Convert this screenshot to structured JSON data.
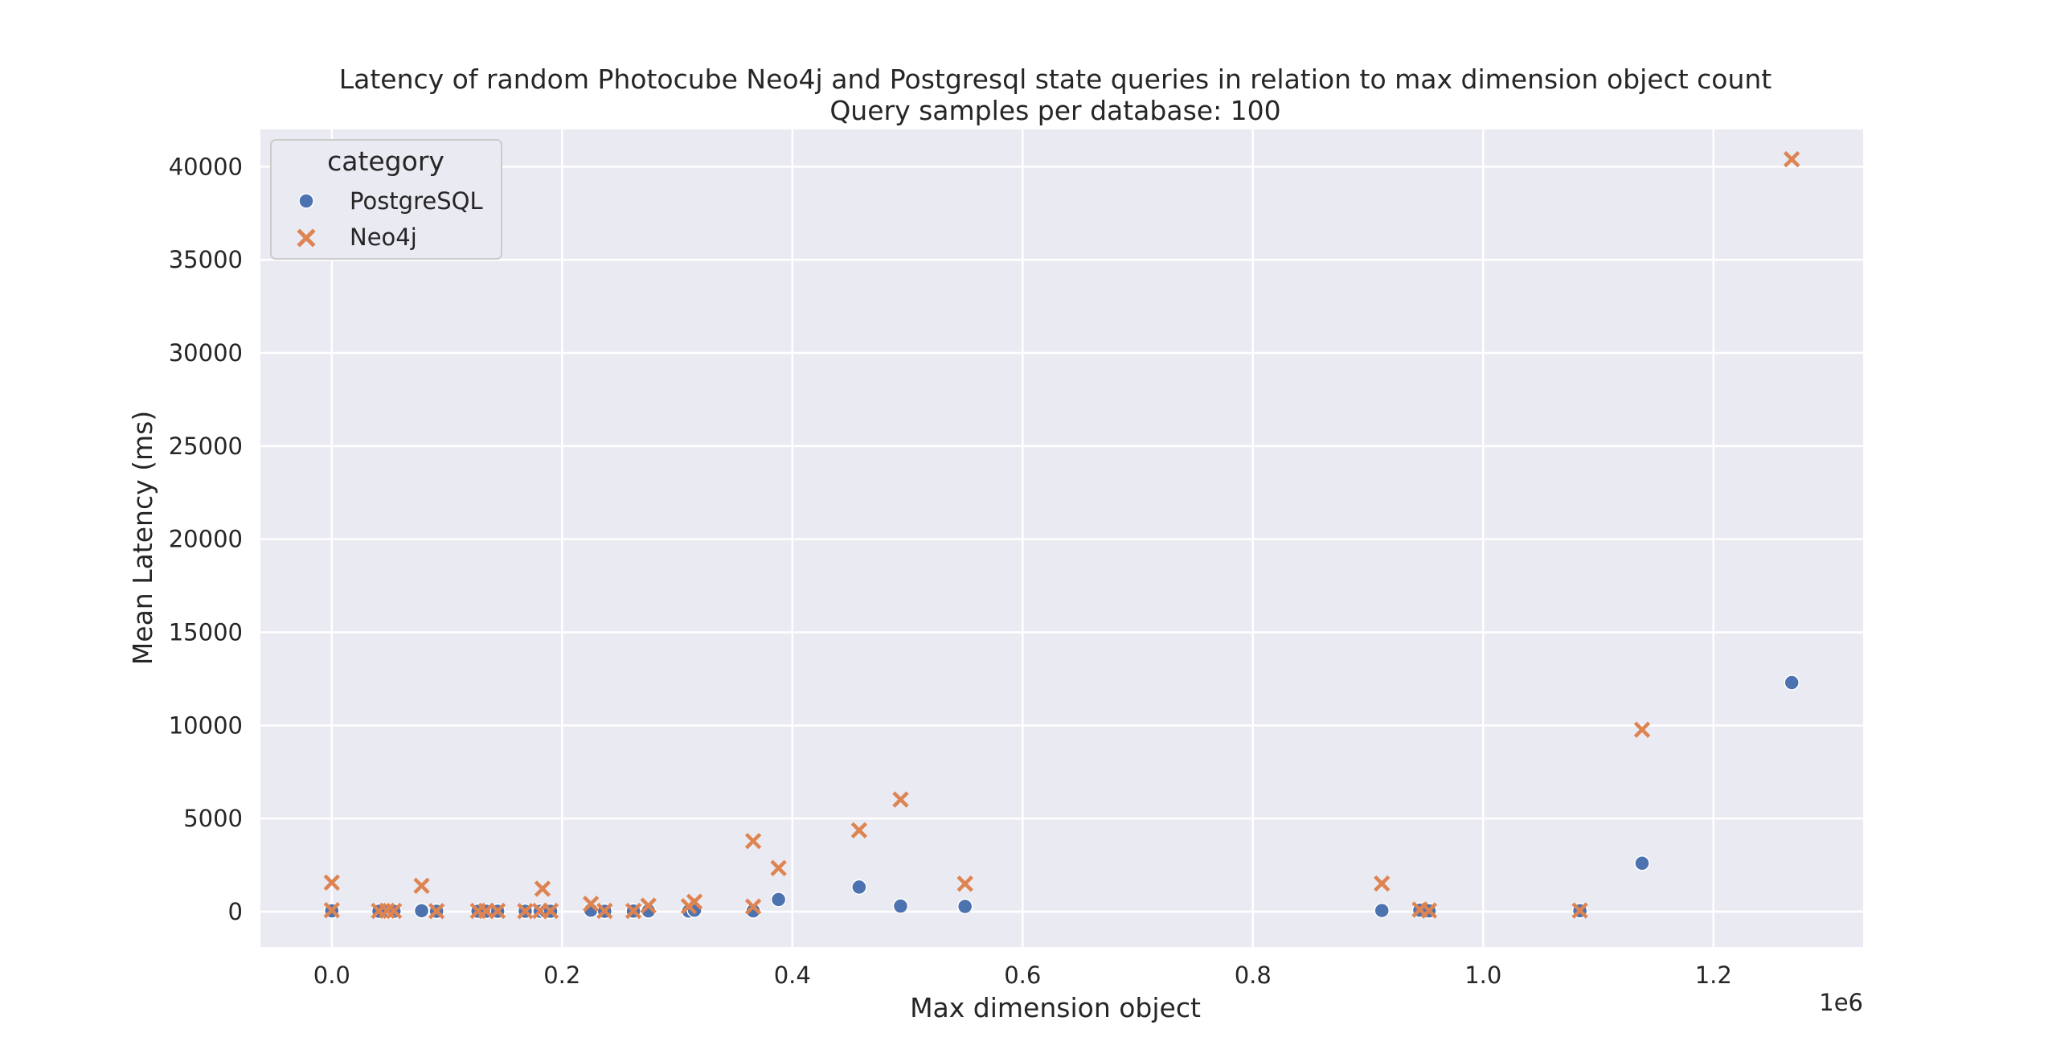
{
  "chart_data": {
    "type": "scatter",
    "title": "Latency of random Photocube Neo4j and Postgresql state queries in relation to max dimension object count",
    "subtitle": "Query samples per database: 100",
    "xlabel": "Max dimension object",
    "ylabel": "Mean Latency (ms)",
    "x_offset_label": "1e6",
    "xlim": [
      -62000,
      1330000
    ],
    "ylim": [
      -1900,
      42000
    ],
    "x_ticks": [
      0,
      200000,
      400000,
      600000,
      800000,
      1000000,
      1200000
    ],
    "x_tick_labels": [
      "0.0",
      "0.2",
      "0.4",
      "0.6",
      "0.8",
      "1.0",
      "1.2"
    ],
    "y_ticks": [
      0,
      5000,
      10000,
      15000,
      20000,
      25000,
      30000,
      35000,
      40000
    ],
    "y_tick_labels": [
      "0",
      "5000",
      "10000",
      "15000",
      "20000",
      "25000",
      "30000",
      "35000",
      "40000"
    ],
    "grid": true,
    "legend": {
      "title": "category",
      "position": "top-left"
    },
    "colors": {
      "background": "#eaeaf2",
      "grid": "#ffffff",
      "PostgreSQL": "#4c72b0",
      "Neo4j": "#dd8452"
    },
    "series": [
      {
        "name": "PostgreSQL",
        "marker": "circle",
        "points": [
          [
            0,
            40
          ],
          [
            41000,
            20
          ],
          [
            48000,
            30
          ],
          [
            54000,
            20
          ],
          [
            78000,
            50
          ],
          [
            91000,
            20
          ],
          [
            127000,
            20
          ],
          [
            134000,
            20
          ],
          [
            144000,
            20
          ],
          [
            168000,
            20
          ],
          [
            181000,
            20
          ],
          [
            186000,
            20
          ],
          [
            190000,
            20
          ],
          [
            225000,
            80
          ],
          [
            237000,
            20
          ],
          [
            262000,
            30
          ],
          [
            275000,
            40
          ],
          [
            310000,
            30
          ],
          [
            315000,
            80
          ],
          [
            366000,
            40
          ],
          [
            388000,
            650
          ],
          [
            458000,
            1320
          ],
          [
            494000,
            300
          ],
          [
            550000,
            280
          ],
          [
            912000,
            60
          ],
          [
            945000,
            80
          ],
          [
            953000,
            40
          ],
          [
            1084000,
            50
          ],
          [
            1138000,
            2600
          ],
          [
            1268000,
            12300
          ]
        ]
      },
      {
        "name": "Neo4j",
        "marker": "x",
        "points": [
          [
            0,
            1560
          ],
          [
            0,
            80
          ],
          [
            41000,
            40
          ],
          [
            48000,
            50
          ],
          [
            54000,
            40
          ],
          [
            78000,
            1390
          ],
          [
            91000,
            30
          ],
          [
            127000,
            40
          ],
          [
            134000,
            40
          ],
          [
            144000,
            40
          ],
          [
            168000,
            30
          ],
          [
            181000,
            40
          ],
          [
            183000,
            1230
          ],
          [
            190000,
            40
          ],
          [
            225000,
            420
          ],
          [
            237000,
            40
          ],
          [
            262000,
            40
          ],
          [
            275000,
            320
          ],
          [
            310000,
            290
          ],
          [
            315000,
            530
          ],
          [
            366000,
            3790
          ],
          [
            366000,
            270
          ],
          [
            388000,
            2340
          ],
          [
            458000,
            4370
          ],
          [
            494000,
            6020
          ],
          [
            550000,
            1500
          ],
          [
            912000,
            1510
          ],
          [
            945000,
            110
          ],
          [
            953000,
            60
          ],
          [
            1084000,
            60
          ],
          [
            1138000,
            9770
          ],
          [
            1268000,
            40400
          ]
        ]
      }
    ]
  }
}
